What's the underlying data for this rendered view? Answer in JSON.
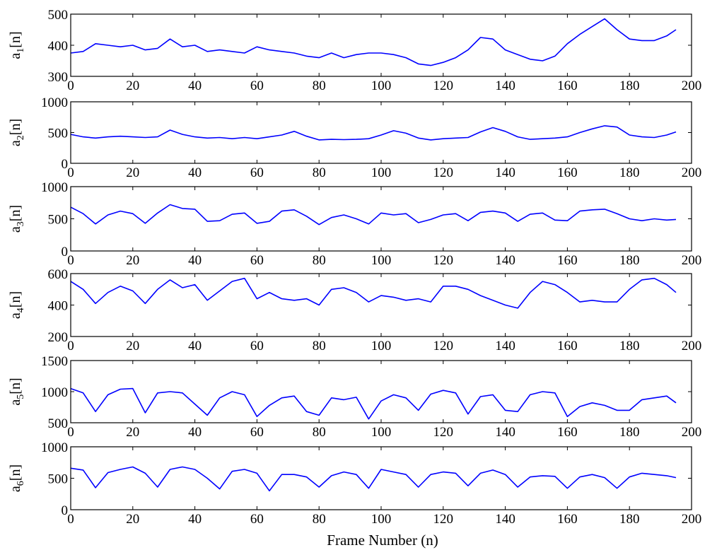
{
  "figure": {
    "xlabel": "Frame Number (n)"
  },
  "style": {
    "line_color": "#0000ff",
    "axis_color": "#000000",
    "background": "#ffffff"
  },
  "chart_data": [
    {
      "type": "line",
      "ylabel_base": "a",
      "ylabel_sub": "1",
      "ylabel_tail": "[n]",
      "xlim": [
        0,
        200
      ],
      "ylim": [
        300,
        500
      ],
      "xticks": [
        0,
        20,
        40,
        60,
        80,
        100,
        120,
        140,
        160,
        180,
        200
      ],
      "yticks": [
        300,
        400,
        500
      ],
      "grid": false,
      "series": [
        {
          "x": [
            0,
            4,
            8,
            12,
            16,
            20,
            24,
            28,
            32,
            36,
            40,
            44,
            48,
            52,
            56,
            60,
            64,
            68,
            72,
            76,
            80,
            84,
            88,
            92,
            96,
            100,
            104,
            108,
            112,
            116,
            120,
            124,
            128,
            132,
            136,
            140,
            144,
            148,
            152,
            156,
            160,
            164,
            168,
            172,
            176,
            180,
            184,
            188,
            192,
            195
          ],
          "y": [
            375,
            380,
            405,
            400,
            395,
            400,
            385,
            390,
            420,
            395,
            400,
            380,
            385,
            380,
            375,
            395,
            385,
            380,
            375,
            365,
            360,
            375,
            360,
            370,
            375,
            375,
            370,
            360,
            340,
            335,
            345,
            360,
            385,
            425,
            420,
            385,
            370,
            355,
            350,
            365,
            405,
            435,
            460,
            485,
            450,
            420,
            415,
            415,
            430,
            450
          ]
        }
      ]
    },
    {
      "type": "line",
      "ylabel_base": "a",
      "ylabel_sub": "2",
      "ylabel_tail": "[n]",
      "xlim": [
        0,
        200
      ],
      "ylim": [
        0,
        1000
      ],
      "xticks": [
        0,
        20,
        40,
        60,
        80,
        100,
        120,
        140,
        160,
        180,
        200
      ],
      "yticks": [
        0,
        500,
        1000
      ],
      "grid": false,
      "series": [
        {
          "x": [
            0,
            4,
            8,
            12,
            16,
            20,
            24,
            28,
            32,
            36,
            40,
            44,
            48,
            52,
            56,
            60,
            64,
            68,
            72,
            76,
            80,
            84,
            88,
            92,
            96,
            100,
            104,
            108,
            112,
            116,
            120,
            124,
            128,
            132,
            136,
            140,
            144,
            148,
            152,
            156,
            160,
            164,
            168,
            172,
            176,
            180,
            184,
            188,
            192,
            195
          ],
          "y": [
            470,
            430,
            410,
            430,
            440,
            430,
            420,
            430,
            540,
            470,
            430,
            410,
            420,
            400,
            420,
            400,
            430,
            460,
            520,
            440,
            380,
            390,
            385,
            390,
            400,
            460,
            530,
            490,
            410,
            380,
            400,
            410,
            420,
            510,
            580,
            520,
            430,
            390,
            400,
            410,
            430,
            500,
            560,
            610,
            590,
            460,
            430,
            420,
            460,
            510
          ]
        }
      ]
    },
    {
      "type": "line",
      "ylabel_base": "a",
      "ylabel_sub": "3",
      "ylabel_tail": "[n]",
      "xlim": [
        0,
        200
      ],
      "ylim": [
        0,
        1000
      ],
      "xticks": [
        0,
        20,
        40,
        60,
        80,
        100,
        120,
        140,
        160,
        180,
        200
      ],
      "yticks": [
        0,
        500,
        1000
      ],
      "grid": false,
      "series": [
        {
          "x": [
            0,
            4,
            8,
            12,
            16,
            20,
            24,
            28,
            32,
            36,
            40,
            44,
            48,
            52,
            56,
            60,
            64,
            68,
            72,
            76,
            80,
            84,
            88,
            92,
            96,
            100,
            104,
            108,
            112,
            116,
            120,
            124,
            128,
            132,
            136,
            140,
            144,
            148,
            152,
            156,
            160,
            164,
            168,
            172,
            176,
            180,
            184,
            188,
            192,
            195
          ],
          "y": [
            680,
            580,
            420,
            560,
            620,
            580,
            430,
            590,
            720,
            660,
            650,
            460,
            470,
            570,
            590,
            430,
            460,
            620,
            640,
            540,
            410,
            520,
            560,
            500,
            420,
            590,
            560,
            580,
            440,
            490,
            560,
            580,
            470,
            600,
            620,
            590,
            460,
            570,
            590,
            480,
            470,
            620,
            640,
            650,
            580,
            500,
            470,
            500,
            480,
            490
          ]
        }
      ]
    },
    {
      "type": "line",
      "ylabel_base": "a",
      "ylabel_sub": "4",
      "ylabel_tail": "[n]",
      "xlim": [
        0,
        200
      ],
      "ylim": [
        200,
        600
      ],
      "xticks": [
        0,
        20,
        40,
        60,
        80,
        100,
        120,
        140,
        160,
        180,
        200
      ],
      "yticks": [
        200,
        400,
        600
      ],
      "grid": false,
      "series": [
        {
          "x": [
            0,
            4,
            8,
            12,
            16,
            20,
            24,
            28,
            32,
            36,
            40,
            44,
            48,
            52,
            56,
            60,
            64,
            68,
            72,
            76,
            80,
            84,
            88,
            92,
            96,
            100,
            104,
            108,
            112,
            116,
            120,
            124,
            128,
            132,
            136,
            140,
            144,
            148,
            152,
            156,
            160,
            164,
            168,
            172,
            176,
            180,
            184,
            188,
            192,
            195
          ],
          "y": [
            550,
            500,
            410,
            480,
            520,
            490,
            410,
            500,
            560,
            510,
            530,
            430,
            490,
            550,
            570,
            440,
            480,
            440,
            430,
            440,
            400,
            500,
            510,
            480,
            420,
            460,
            450,
            430,
            440,
            420,
            520,
            520,
            500,
            460,
            430,
            400,
            380,
            480,
            550,
            530,
            480,
            420,
            430,
            420,
            420,
            500,
            560,
            570,
            530,
            480
          ]
        }
      ]
    },
    {
      "type": "line",
      "ylabel_base": "a",
      "ylabel_sub": "5",
      "ylabel_tail": "[n]",
      "xlim": [
        0,
        200
      ],
      "ylim": [
        500,
        1500
      ],
      "xticks": [
        0,
        20,
        40,
        60,
        80,
        100,
        120,
        140,
        160,
        180,
        200
      ],
      "yticks": [
        500,
        1000,
        1500
      ],
      "grid": false,
      "series": [
        {
          "x": [
            0,
            4,
            8,
            12,
            16,
            20,
            24,
            28,
            32,
            36,
            40,
            44,
            48,
            52,
            56,
            60,
            64,
            68,
            72,
            76,
            80,
            84,
            88,
            92,
            96,
            100,
            104,
            108,
            112,
            116,
            120,
            124,
            128,
            132,
            136,
            140,
            144,
            148,
            152,
            156,
            160,
            164,
            168,
            172,
            176,
            180,
            184,
            188,
            192,
            195
          ],
          "y": [
            1050,
            980,
            680,
            950,
            1040,
            1050,
            660,
            980,
            1000,
            980,
            800,
            620,
            900,
            1000,
            950,
            600,
            780,
            900,
            930,
            680,
            620,
            900,
            870,
            910,
            560,
            850,
            950,
            900,
            700,
            960,
            1020,
            980,
            640,
            920,
            950,
            700,
            680,
            950,
            1000,
            980,
            600,
            760,
            820,
            780,
            700,
            700,
            870,
            900,
            930,
            820
          ]
        }
      ]
    },
    {
      "type": "line",
      "ylabel_base": "a",
      "ylabel_sub": "6",
      "ylabel_tail": "[n]",
      "xlim": [
        0,
        200
      ],
      "ylim": [
        0,
        1000
      ],
      "xticks": [
        0,
        20,
        40,
        60,
        80,
        100,
        120,
        140,
        160,
        180,
        200
      ],
      "yticks": [
        0,
        500,
        1000
      ],
      "grid": false,
      "series": [
        {
          "x": [
            0,
            4,
            8,
            12,
            16,
            20,
            24,
            28,
            32,
            36,
            40,
            44,
            48,
            52,
            56,
            60,
            64,
            68,
            72,
            76,
            80,
            84,
            88,
            92,
            96,
            100,
            104,
            108,
            112,
            116,
            120,
            124,
            128,
            132,
            136,
            140,
            144,
            148,
            152,
            156,
            160,
            164,
            168,
            172,
            176,
            180,
            184,
            188,
            192,
            195
          ],
          "y": [
            660,
            630,
            350,
            590,
            640,
            680,
            580,
            360,
            640,
            680,
            640,
            500,
            330,
            610,
            640,
            580,
            300,
            560,
            560,
            520,
            360,
            540,
            600,
            560,
            340,
            640,
            600,
            560,
            360,
            560,
            600,
            580,
            380,
            580,
            630,
            560,
            360,
            520,
            540,
            530,
            340,
            520,
            560,
            510,
            340,
            520,
            580,
            560,
            540,
            510
          ]
        }
      ]
    }
  ]
}
